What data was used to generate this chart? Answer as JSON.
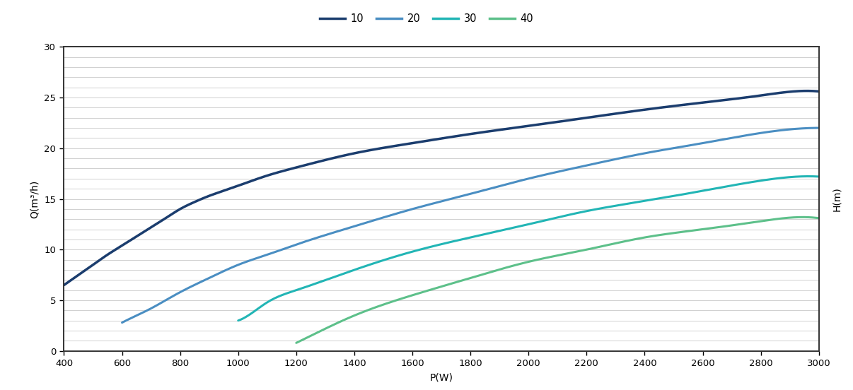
{
  "xlabel": "P(W)",
  "ylabel": "Q(m³/h)",
  "y_right_label": "H(m)",
  "xlim": [
    400,
    3000
  ],
  "ylim": [
    0,
    30
  ],
  "xticks": [
    400,
    600,
    800,
    1000,
    1200,
    1400,
    1600,
    1800,
    2000,
    2200,
    2400,
    2600,
    2800,
    3000
  ],
  "yticks": [
    0,
    5,
    10,
    15,
    20,
    25,
    30
  ],
  "plot_bg_color": "#ffffff",
  "fig_bg_color": "#ffffff",
  "grid_color": "#d0d0d0",
  "series": [
    {
      "label": "10",
      "color": "#1b3d6e",
      "linewidth": 2.5,
      "x": [
        400,
        450,
        500,
        550,
        600,
        650,
        700,
        750,
        800,
        850,
        900,
        950,
        1000,
        1100,
        1200,
        1400,
        1600,
        1800,
        2000,
        2200,
        2400,
        2600,
        2800,
        2850,
        3000
      ],
      "y": [
        6.5,
        7.5,
        8.5,
        9.5,
        10.4,
        11.3,
        12.2,
        13.1,
        14.0,
        14.7,
        15.3,
        15.8,
        16.3,
        17.3,
        18.1,
        19.5,
        20.5,
        21.4,
        22.2,
        23.0,
        23.8,
        24.5,
        25.2,
        25.4,
        25.6
      ]
    },
    {
      "label": "20",
      "color": "#4a8ec2",
      "linewidth": 2.2,
      "x": [
        600,
        650,
        700,
        750,
        800,
        900,
        1000,
        1100,
        1200,
        1400,
        1600,
        1800,
        2000,
        2200,
        2400,
        2600,
        2800,
        2850,
        3000
      ],
      "y": [
        2.8,
        3.5,
        4.2,
        5.0,
        5.8,
        7.2,
        8.5,
        9.5,
        10.5,
        12.3,
        14.0,
        15.5,
        17.0,
        18.3,
        19.5,
        20.5,
        21.5,
        21.7,
        22.0
      ]
    },
    {
      "label": "30",
      "color": "#22b5b5",
      "linewidth": 2.2,
      "x": [
        1000,
        1050,
        1100,
        1200,
        1400,
        1600,
        1800,
        2000,
        2200,
        2400,
        2600,
        2800,
        2850,
        3000
      ],
      "y": [
        3.0,
        3.8,
        4.8,
        6.0,
        8.0,
        9.8,
        11.2,
        12.5,
        13.8,
        14.8,
        15.8,
        16.8,
        17.0,
        17.2
      ]
    },
    {
      "label": "40",
      "color": "#5dc08a",
      "linewidth": 2.2,
      "x": [
        1200,
        1250,
        1300,
        1400,
        1600,
        1800,
        2000,
        2200,
        2400,
        2600,
        2800,
        2850,
        3000
      ],
      "y": [
        0.8,
        1.5,
        2.2,
        3.5,
        5.5,
        7.2,
        8.8,
        10.0,
        11.2,
        12.0,
        12.8,
        13.0,
        13.1
      ]
    }
  ]
}
